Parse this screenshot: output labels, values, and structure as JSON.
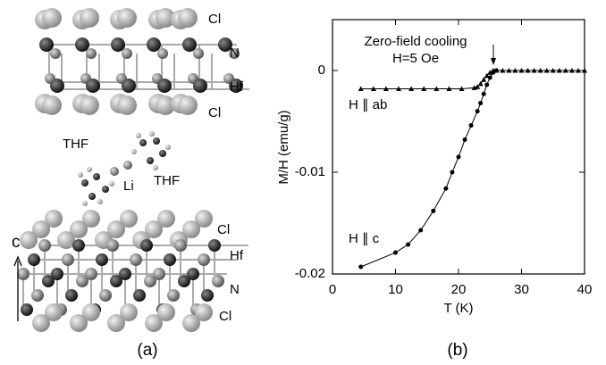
{
  "panel_a": {
    "labels": [
      "Cl",
      "N",
      "Hf",
      "Cl",
      "THF",
      "Li",
      "THF",
      "Cl",
      "Hf",
      "N",
      "Cl"
    ],
    "axis_label": "c",
    "caption": "(a)"
  },
  "chart_data": {
    "type": "line",
    "caption": "(b)",
    "x_label": "T  (K)",
    "y_label": "M/H (emu/g)",
    "annotations": [
      "Zero-field cooling",
      "H=5 Oe"
    ],
    "xlim": [
      0,
      40
    ],
    "xticks": [
      0,
      10,
      20,
      30,
      40
    ],
    "ylim": [
      -0.02,
      0.005
    ],
    "yticks": [
      -0.02,
      -0.01,
      0
    ],
    "series": [
      {
        "name": "H ∥ ab",
        "color": "#000000",
        "marker": "triangle",
        "x": [
          4.5,
          6.5,
          8.5,
          10.5,
          12.5,
          14.5,
          16.5,
          18.5,
          20.5,
          22.5,
          23,
          23.5,
          24,
          24.5,
          25,
          25.5,
          26,
          27,
          28,
          29,
          30,
          31,
          32,
          33,
          34,
          35,
          36,
          37,
          38,
          39,
          40
        ],
        "values": [
          -0.0018,
          -0.0018,
          -0.0018,
          -0.0018,
          -0.0018,
          -0.0018,
          -0.0018,
          -0.0018,
          -0.0018,
          -0.0017,
          -0.0016,
          -0.0013,
          -0.0009,
          -0.0005,
          -0.0002,
          0,
          0,
          0,
          0,
          0,
          0,
          0,
          0,
          0,
          0,
          0,
          0,
          0,
          0,
          0,
          0
        ]
      },
      {
        "name": "H ∥ c",
        "color": "#000000",
        "marker": "circle",
        "x": [
          4.5,
          10,
          12,
          14,
          16,
          18,
          19,
          20,
          21,
          22,
          23,
          23.5,
          24,
          24.5,
          25,
          25.5,
          26
        ],
        "values": [
          -0.0193,
          -0.0179,
          -0.0171,
          -0.0157,
          -0.0138,
          -0.0116,
          -0.01,
          -0.0085,
          -0.0068,
          -0.0054,
          -0.004,
          -0.0032,
          -0.0023,
          -0.0014,
          -0.0007,
          -0.0002,
          0
        ]
      }
    ]
  }
}
